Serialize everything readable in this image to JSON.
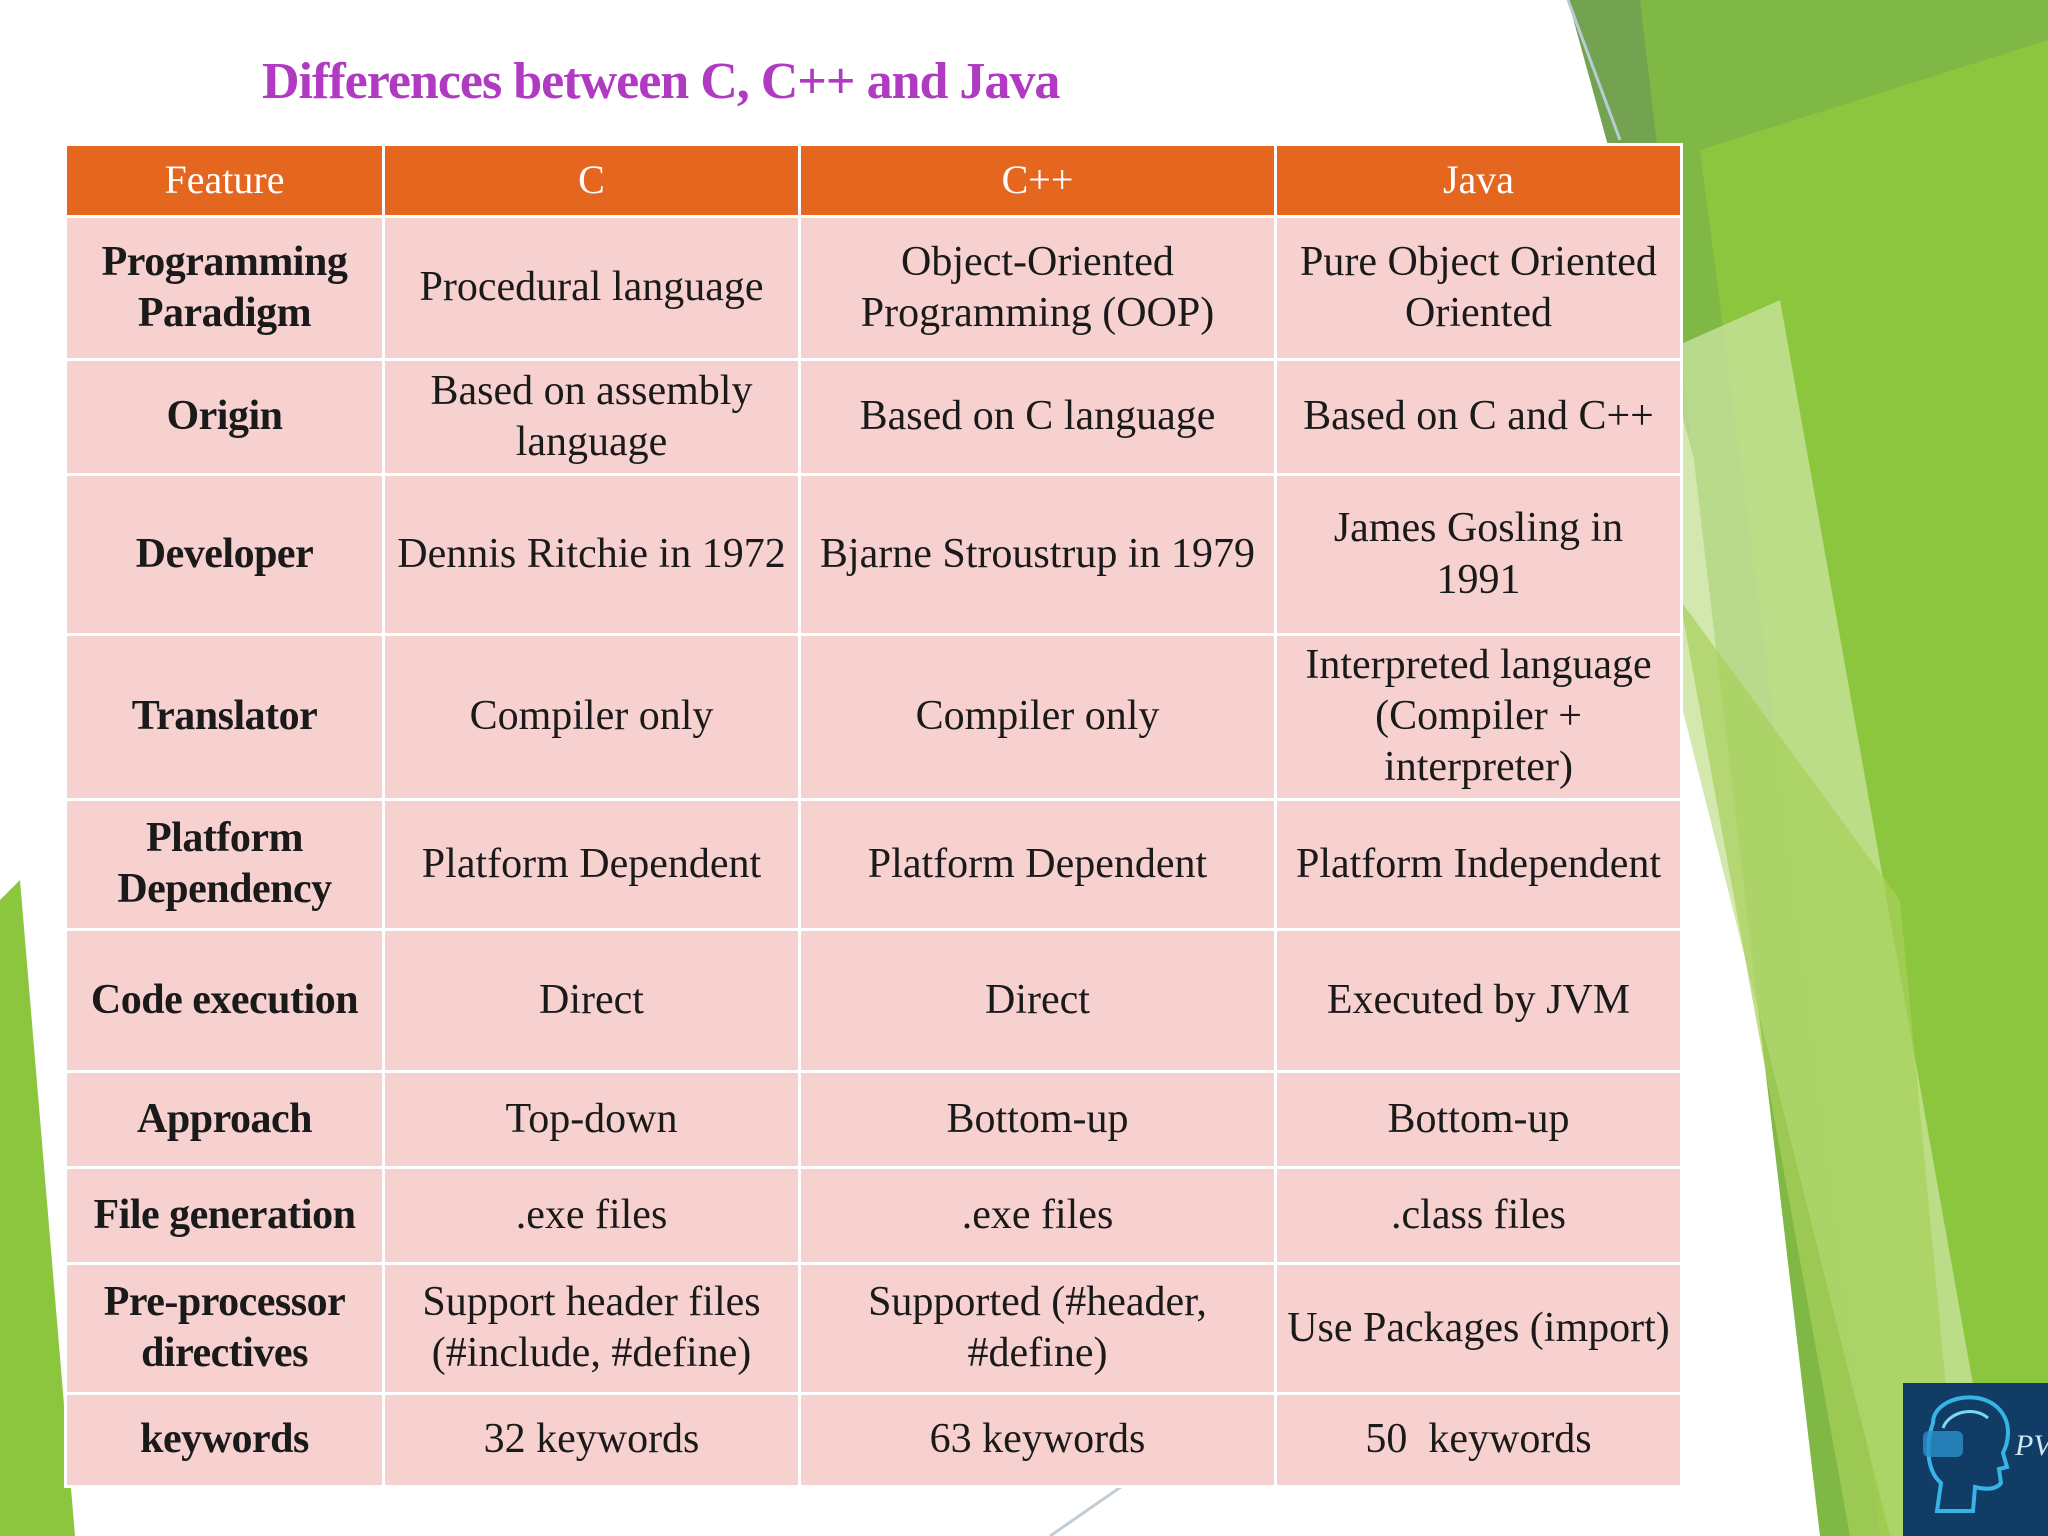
{
  "slide": {
    "title": "Differences between C, C++ and Java",
    "colors": {
      "title": "#b03ac2",
      "header_bg": "#e5661f",
      "header_text": "#ffffff",
      "cell_bg": "#f6d1d0",
      "accent_green": "#8cc63f"
    }
  },
  "table": {
    "headers": [
      "Feature",
      "C",
      "C++",
      "Java"
    ],
    "rows": [
      {
        "feature": "Programming Paradigm",
        "c": "Procedural language",
        "cpp": "Object-Oriented Programming (OOP)",
        "java": "Pure Object Oriented Oriented"
      },
      {
        "feature": "Origin",
        "c": "Based on assembly language",
        "cpp": "Based on C language",
        "java": "Based on C and C++"
      },
      {
        "feature": "Developer",
        "c": "Dennis Ritchie in 1972",
        "cpp": "Bjarne Stroustrup in 1979",
        "java": "James Gosling in 1991"
      },
      {
        "feature": "Translator",
        "c": "Compiler only",
        "cpp": "Compiler only",
        "java": "Interpreted language (Compiler + interpreter)"
      },
      {
        "feature": "Platform Dependency",
        "c": "Platform Dependent",
        "cpp": "Platform Dependent",
        "java": "Platform Independent"
      },
      {
        "feature": "Code execution",
        "c": "Direct",
        "cpp": "Direct",
        "java": "Executed by JVM"
      },
      {
        "feature": "Approach",
        "c": "Top-down",
        "cpp": "Bottom-up",
        "java": "Bottom-up"
      },
      {
        "feature": "File generation",
        "c": ".exe files",
        "cpp": ".exe files",
        "java": ".class files"
      },
      {
        "feature": "Pre-processor directives",
        "c": "Support header files (#include, #define)",
        "cpp": "Supported (#header, #define)",
        "java": "Use Packages (import)"
      },
      {
        "feature": "keywords",
        "c": "32 keywords",
        "cpp": "63 keywords",
        "java": "50  keywords"
      }
    ]
  },
  "logo": {
    "icon": "head-profile-logo-icon",
    "text": "PVC"
  }
}
